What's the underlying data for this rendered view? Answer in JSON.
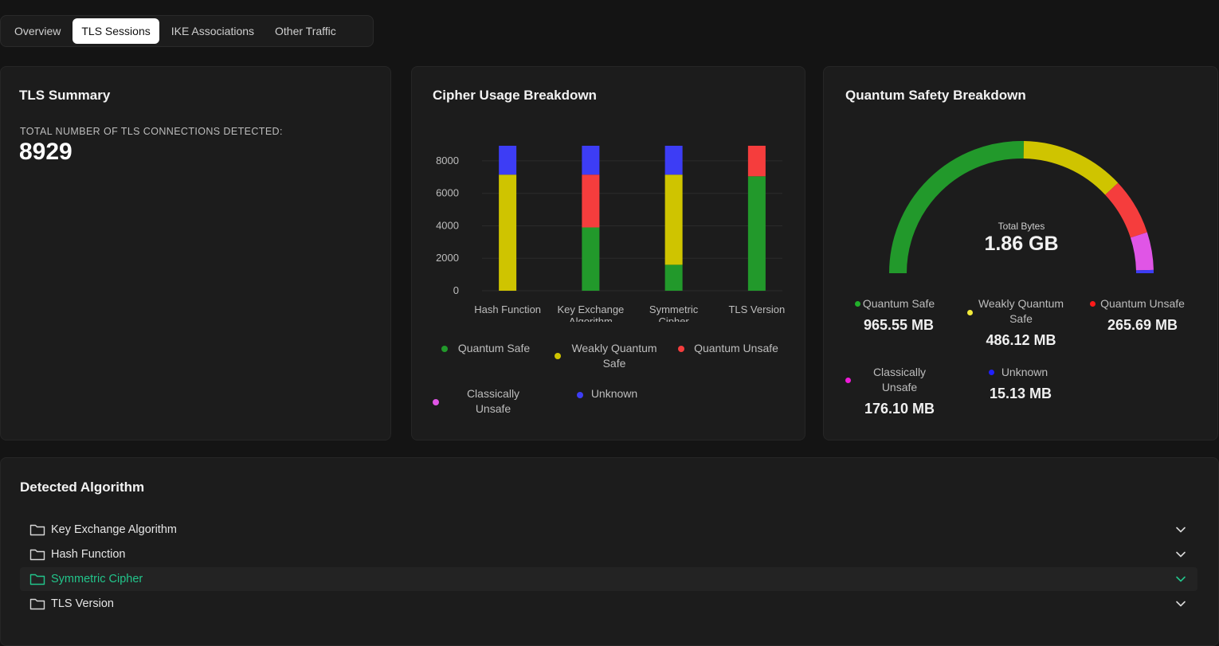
{
  "tabs": [
    {
      "label": "Overview",
      "active": false
    },
    {
      "label": "TLS Sessions",
      "active": true
    },
    {
      "label": "IKE Associations",
      "active": false
    },
    {
      "label": "Other Traffic",
      "active": false
    }
  ],
  "tls_summary": {
    "title": "TLS Summary",
    "total_label": "TOTAL NUMBER OF TLS CONNECTIONS DETECTED:",
    "total_value": "8929"
  },
  "cipher_breakdown": {
    "title": "Cipher Usage Breakdown",
    "legend": [
      {
        "label": "Quantum Safe",
        "color": "#22992b"
      },
      {
        "label": "Weakly Quantum Safe",
        "color": "#cfc400"
      },
      {
        "label": "Quantum Unsafe",
        "color": "#f53d3d"
      },
      {
        "label": "Classically Unsafe",
        "color": "#e055e6"
      },
      {
        "label": "Unknown",
        "color": "#3d3df5"
      }
    ]
  },
  "chart_data": {
    "type": "bar",
    "stacked": true,
    "categories": [
      "Hash Function",
      "Key Exchange Algorithm",
      "Symmetric Cipher",
      "TLS Version"
    ],
    "series": [
      {
        "name": "Quantum Safe",
        "color": "#22992b",
        "values": [
          0,
          3900,
          1600,
          7050
        ]
      },
      {
        "name": "Weakly Quantum Safe",
        "color": "#cfc400",
        "values": [
          7150,
          0,
          5550,
          0
        ]
      },
      {
        "name": "Quantum Unsafe",
        "color": "#f53d3d",
        "values": [
          0,
          3250,
          0,
          1880
        ]
      },
      {
        "name": "Classically Unsafe",
        "color": "#e055e6",
        "values": [
          0,
          0,
          0,
          0
        ]
      },
      {
        "name": "Unknown",
        "color": "#3d3df5",
        "values": [
          1780,
          1780,
          1780,
          0
        ]
      }
    ],
    "yticks": [
      0,
      2000,
      4000,
      6000,
      8000
    ],
    "ylim": [
      0,
      8929
    ],
    "grid": true,
    "legend_position": "bottom"
  },
  "quantum_breakdown": {
    "title": "Quantum Safety Breakdown",
    "center_label": "Total Bytes",
    "center_value": "1.86 GB",
    "segments": [
      {
        "label": "Quantum Safe",
        "value": "965.55 MB",
        "mb": 965.55,
        "color": "#22992b",
        "dot_color": "#22b02b"
      },
      {
        "label": "Weakly Quantum Safe",
        "value": "486.12 MB",
        "mb": 486.12,
        "color": "#cfc400",
        "dot_color": "#f2ea3a"
      },
      {
        "label": "Quantum Unsafe",
        "value": "265.69 MB",
        "mb": 265.69,
        "color": "#f53d3d",
        "dot_color": "#ff1a1a"
      },
      {
        "label": "Classically Unsafe",
        "value": "176.10 MB",
        "mb": 176.1,
        "color": "#e055e6",
        "dot_color": "#ee1bd8"
      },
      {
        "label": "Unknown",
        "value": "15.13 MB",
        "mb": 15.13,
        "color": "#3d3df5",
        "dot_color": "#2020ff"
      }
    ]
  },
  "detected_algorithm": {
    "title": "Detected Algorithm",
    "items": [
      {
        "label": "Key Exchange Algorithm",
        "active": false
      },
      {
        "label": "Hash Function",
        "active": false
      },
      {
        "label": "Symmetric Cipher",
        "active": true
      },
      {
        "label": "TLS Version",
        "active": false
      }
    ]
  }
}
